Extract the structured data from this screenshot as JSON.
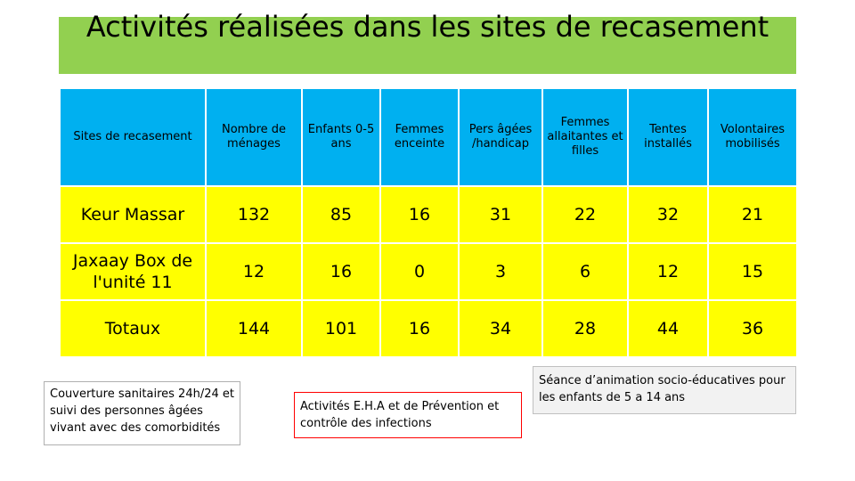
{
  "title": "Activités réalisées dans les sites de recasement",
  "table": {
    "headers": [
      "Sites de recasement",
      "Nombre de ménages",
      "Enfants 0-5 ans",
      "Femmes enceinte",
      "Pers âgées /handicap",
      "Femmes allaitantes et filles",
      "Tentes installés",
      "Volontaires mobilisés"
    ],
    "rows": [
      {
        "site": "Keur Massar",
        "values": [
          "132",
          "85",
          "16",
          "31",
          "22",
          "32",
          "21"
        ]
      },
      {
        "site": "Jaxaay Box de l'unité 11",
        "values": [
          "12",
          "16",
          "0",
          "3",
          "6",
          "12",
          "15"
        ]
      },
      {
        "site": "Totaux",
        "values": [
          "144",
          "101",
          "16",
          "34",
          "28",
          "44",
          "36"
        ]
      }
    ]
  },
  "notes": {
    "health": "Couverture sanitaires 24h/24 et suivi des personnes âgées vivant avec des comorbidités",
    "eha": "Activités E.H.A et de Prévention et contrôle des infections",
    "animation": "Séance d’animation socio-éducatives pour les enfants de 5 a 14 ans"
  },
  "colors": {
    "title_band": "#92d050",
    "header": "#00b0f0",
    "cells": "#ffff00",
    "eha_border": "#ff0000"
  }
}
